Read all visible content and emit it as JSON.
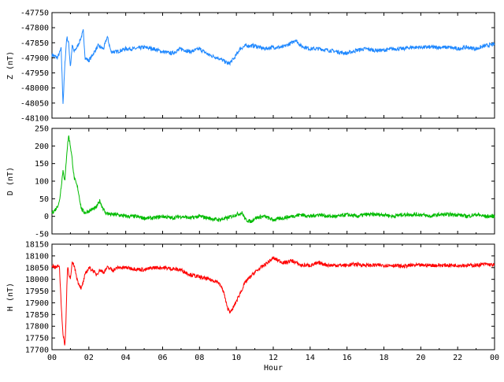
{
  "chart_data": [
    {
      "type": "line",
      "ylabel": "Z (nT)",
      "ylim": [
        -48100,
        -47750
      ],
      "yticks": [
        -47750,
        -47800,
        -47850,
        -47900,
        -47950,
        -48000,
        -48050,
        -48100
      ],
      "xlim": [
        0,
        24
      ],
      "color": "#1f88ff",
      "grid": false,
      "series": [
        {
          "x": [
            0,
            0.3,
            0.5,
            0.6,
            0.7,
            0.8,
            0.9,
            1.0,
            1.1,
            1.2,
            1.4,
            1.6,
            1.7,
            1.8,
            2.0,
            2.2,
            2.5,
            2.8,
            3.0,
            3.2,
            3.5,
            4.0,
            4.5,
            5.0,
            5.5,
            6.0,
            6.5,
            7.0,
            7.5,
            8.0,
            8.5,
            9.0,
            9.3,
            9.6,
            9.9,
            10.2,
            10.5,
            11.0,
            11.5,
            12.0,
            12.5,
            13.0,
            13.2,
            13.5,
            14.0,
            14.5,
            15.0,
            15.5,
            16.0,
            16.5,
            17.0,
            17.5,
            18.0,
            18.5,
            19.0,
            19.5,
            20.0,
            20.5,
            21.0,
            21.5,
            22.0,
            22.5,
            23.0,
            23.5,
            24.0
          ],
          "y": [
            -47890,
            -47900,
            -47870,
            -48050,
            -47920,
            -47830,
            -47850,
            -47930,
            -47860,
            -47880,
            -47860,
            -47830,
            -47810,
            -47900,
            -47910,
            -47890,
            -47860,
            -47870,
            -47830,
            -47880,
            -47880,
            -47870,
            -47870,
            -47865,
            -47870,
            -47880,
            -47885,
            -47870,
            -47880,
            -47870,
            -47890,
            -47900,
            -47910,
            -47920,
            -47900,
            -47870,
            -47860,
            -47860,
            -47870,
            -47865,
            -47865,
            -47850,
            -47840,
            -47860,
            -47870,
            -47870,
            -47875,
            -47880,
            -47885,
            -47875,
            -47870,
            -47875,
            -47875,
            -47870,
            -47870,
            -47865,
            -47865,
            -47865,
            -47865,
            -47865,
            -47870,
            -47865,
            -47870,
            -47860,
            -47855
          ]
        }
      ]
    },
    {
      "type": "line",
      "ylabel": "D (nT)",
      "ylim": [
        -50,
        250
      ],
      "yticks": [
        250,
        200,
        150,
        100,
        50,
        0,
        -50
      ],
      "xlim": [
        0,
        24
      ],
      "color": "#00bb00",
      "grid": false,
      "series": [
        {
          "x": [
            0,
            0.2,
            0.4,
            0.6,
            0.7,
            0.8,
            0.9,
            1.0,
            1.1,
            1.2,
            1.4,
            1.6,
            1.8,
            2.0,
            2.2,
            2.4,
            2.6,
            2.7,
            2.9,
            3.2,
            3.5,
            4.0,
            4.5,
            5.0,
            5.5,
            6.0,
            6.5,
            7.0,
            7.5,
            8.0,
            8.5,
            9.0,
            9.5,
            10.0,
            10.3,
            10.5,
            10.8,
            11.0,
            11.5,
            12.0,
            12.5,
            13.0,
            13.5,
            14.0,
            14.5,
            15.0,
            15.5,
            16.0,
            16.5,
            17.0,
            17.5,
            18.0,
            18.5,
            19.0,
            19.5,
            20.0,
            20.5,
            21.0,
            21.5,
            22.0,
            22.5,
            23.0,
            23.5,
            24.0
          ],
          "y": [
            10,
            20,
            40,
            130,
            100,
            180,
            230,
            200,
            160,
            110,
            80,
            20,
            10,
            15,
            20,
            25,
            45,
            30,
            10,
            5,
            5,
            0,
            0,
            -5,
            -5,
            0,
            -5,
            0,
            -5,
            0,
            -5,
            -10,
            -5,
            5,
            10,
            -10,
            -15,
            -5,
            0,
            -10,
            -5,
            0,
            5,
            0,
            5,
            0,
            0,
            5,
            0,
            5,
            5,
            5,
            0,
            5,
            5,
            5,
            0,
            5,
            5,
            5,
            0,
            5,
            0,
            0
          ]
        }
      ]
    },
    {
      "type": "line",
      "ylabel": "H (nT)",
      "ylim": [
        17700,
        18150
      ],
      "yticks": [
        18150,
        18100,
        18050,
        18000,
        17950,
        17900,
        17850,
        17800,
        17750,
        17700
      ],
      "xlim": [
        0,
        24
      ],
      "xlabel": "Hour",
      "xticks": [
        "00",
        "02",
        "04",
        "06",
        "08",
        "10",
        "12",
        "14",
        "16",
        "18",
        "20",
        "22",
        "00"
      ],
      "color": "#ff0000",
      "grid": false,
      "series": [
        {
          "x": [
            0,
            0.2,
            0.4,
            0.5,
            0.6,
            0.7,
            0.75,
            0.8,
            0.85,
            0.9,
            1.0,
            1.1,
            1.2,
            1.4,
            1.6,
            1.8,
            2.0,
            2.2,
            2.4,
            2.6,
            2.8,
            3.0,
            3.3,
            3.6,
            4.0,
            4.5,
            5.0,
            5.5,
            6.0,
            6.5,
            7.0,
            7.5,
            8.0,
            8.5,
            9.0,
            9.3,
            9.5,
            9.7,
            9.9,
            10.2,
            10.5,
            11.0,
            11.5,
            12.0,
            12.3,
            12.6,
            13.0,
            13.5,
            14.0,
            14.5,
            15.0,
            15.5,
            16.0,
            16.5,
            17.0,
            17.5,
            18.0,
            18.5,
            19.0,
            19.5,
            20.0,
            20.5,
            21.0,
            21.5,
            22.0,
            22.5,
            23.0,
            23.5,
            24.0
          ],
          "y": [
            18060,
            18050,
            18060,
            17900,
            17760,
            17720,
            17800,
            17960,
            18060,
            18030,
            18000,
            18070,
            18060,
            17990,
            17960,
            18020,
            18050,
            18040,
            18020,
            18040,
            18030,
            18050,
            18040,
            18050,
            18050,
            18045,
            18040,
            18050,
            18050,
            18045,
            18040,
            18020,
            18010,
            18000,
            17990,
            17950,
            17880,
            17860,
            17890,
            17940,
            17990,
            18030,
            18060,
            18090,
            18080,
            18070,
            18080,
            18060,
            18060,
            18070,
            18060,
            18060,
            18060,
            18065,
            18060,
            18060,
            18060,
            18060,
            18055,
            18060,
            18060,
            18060,
            18060,
            18060,
            18060,
            18060,
            18060,
            18065,
            18060
          ]
        }
      ]
    }
  ]
}
